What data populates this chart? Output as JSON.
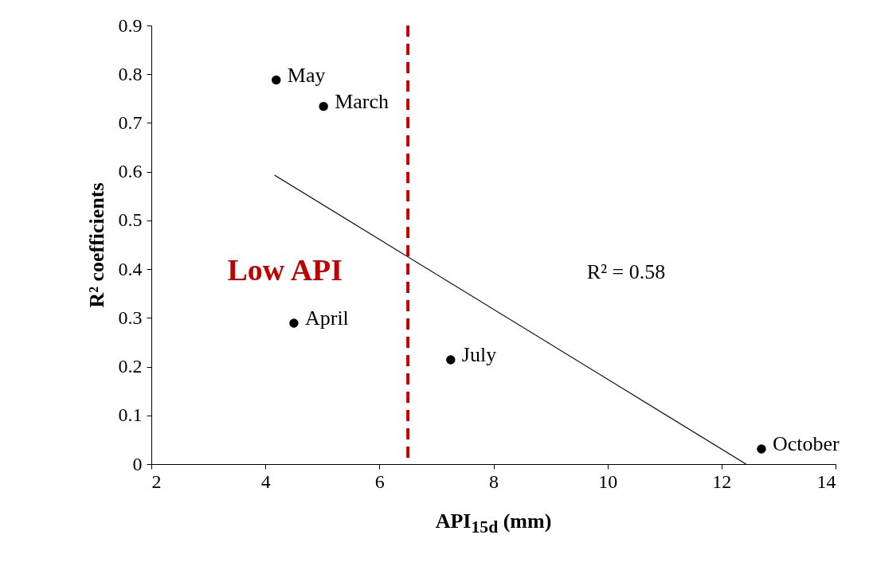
{
  "chart_data": {
    "type": "scatter",
    "xlabel": "API$_{15d}$ (mm)",
    "ylabel": "R² coefficients",
    "series": [
      {
        "color": "#000000",
        "x": [
          4.19,
          5.02,
          4.5,
          7.25,
          12.7
        ],
        "values": [
          0.788,
          0.734,
          0.289,
          0.214,
          0.031
        ],
        "value_labels": [
          "May",
          "March",
          "April",
          "July",
          "October"
        ],
        "marker": "circle"
      },
      {
        "type": "line",
        "color": "#000000",
        "x": [
          4.16,
          12.43
        ],
        "values": [
          0.593,
          0
        ],
        "marker": "none",
        "line_style": "solid"
      }
    ],
    "xlim": [
      2,
      14
    ],
    "xticks": [
      2,
      4,
      6,
      8,
      10,
      12,
      14
    ],
    "ylim": [
      0,
      0.9
    ],
    "yticks": [
      0,
      0.1,
      0.2,
      0.3,
      0.4,
      0.5,
      0.6,
      0.7,
      0.8,
      0.9
    ],
    "grid": false,
    "ref_lines": [
      {
        "axis": "x",
        "value": 6.5,
        "label": "Low API",
        "color": "#c00000",
        "line_style": "dashed"
      }
    ],
    "annotations": [
      "R² = 0.58"
    ]
  }
}
